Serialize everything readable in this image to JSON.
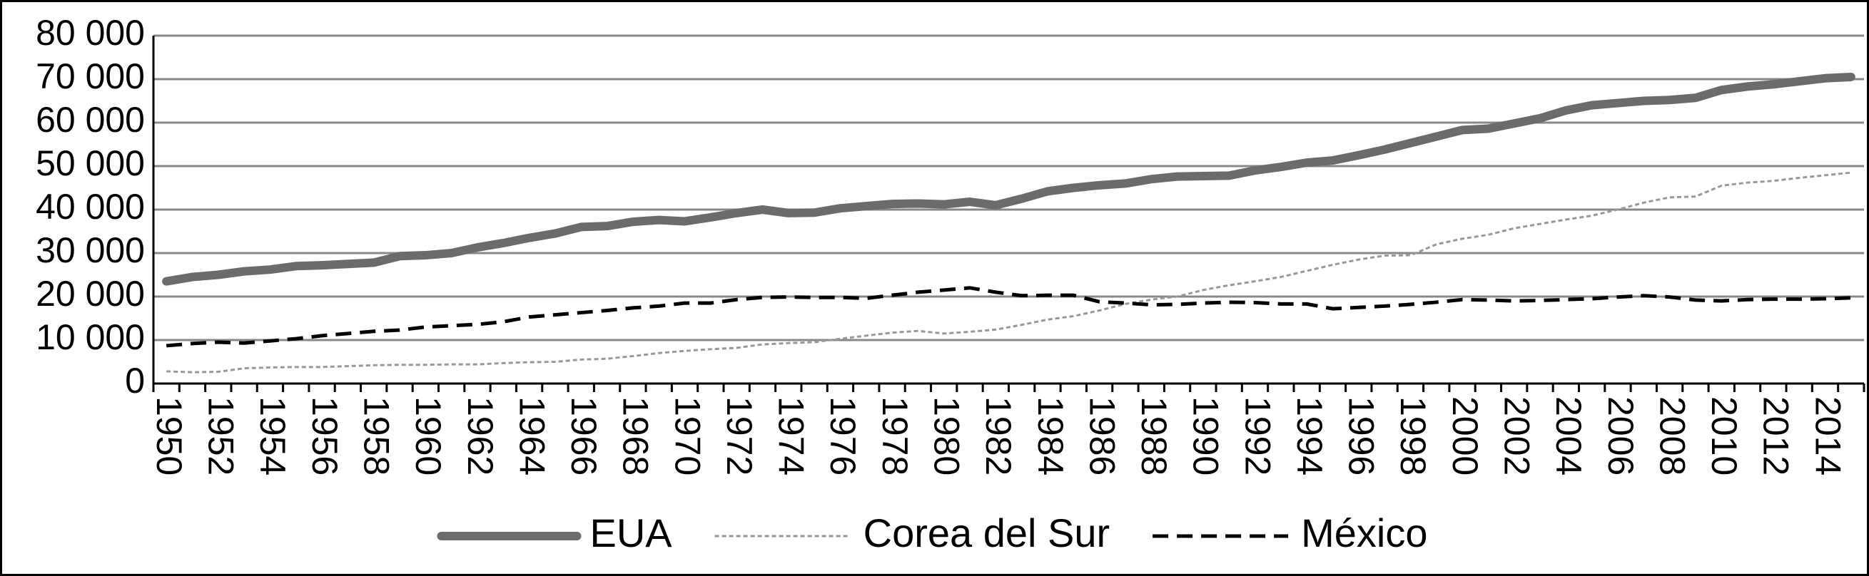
{
  "chart_data": {
    "type": "line",
    "categories": [
      "1950",
      null,
      "1952",
      null,
      "1954",
      null,
      "1956",
      null,
      "1958",
      null,
      "1960",
      null,
      "1962",
      null,
      "1964",
      null,
      "1966",
      null,
      "1968",
      null,
      "1970",
      null,
      "1972",
      null,
      "1974",
      null,
      "1976",
      null,
      "1978",
      null,
      "1980",
      null,
      "1982",
      null,
      "1984",
      null,
      "1986",
      null,
      "1988",
      null,
      "1990",
      null,
      "1992",
      null,
      "1994",
      null,
      "1996",
      null,
      "1998",
      null,
      "2000",
      null,
      "2002",
      null,
      "2004",
      null,
      "2006",
      null,
      "2008",
      null,
      "2010",
      null,
      "2012",
      null,
      "2014",
      null
    ],
    "series": [
      {
        "name": "EUA",
        "color": "#6b6b6b",
        "linestyle": "solid",
        "values": [
          23500,
          24500,
          25000,
          25800,
          26200,
          27000,
          27200,
          27500,
          27800,
          29300,
          29500,
          30000,
          31300,
          32300,
          33500,
          34500,
          36000,
          36200,
          37200,
          37600,
          37300,
          38200,
          39200,
          40000,
          39200,
          39300,
          40300,
          40800,
          41300,
          41400,
          41200,
          41800,
          41000,
          42500,
          44200,
          45000,
          45600,
          46000,
          47000,
          47600,
          47700,
          47800,
          49000,
          49800,
          50800,
          51300,
          52500,
          53800,
          55300,
          56800,
          58300,
          58600,
          59800,
          61000,
          62800,
          64000,
          64500,
          65000,
          65200,
          65700,
          67500,
          68300,
          68800,
          69500,
          70200,
          70500
        ]
      },
      {
        "name": "Corea del Sur",
        "color": "#999999",
        "linestyle": "dotted",
        "values": [
          2800,
          2600,
          2700,
          3500,
          3700,
          3800,
          3800,
          4000,
          4200,
          4300,
          4300,
          4400,
          4400,
          4700,
          4900,
          5000,
          5500,
          5700,
          6300,
          7000,
          7500,
          7900,
          8200,
          9000,
          9300,
          9500,
          10300,
          11000,
          11700,
          12100,
          11500,
          11900,
          12400,
          13500,
          14700,
          15500,
          16800,
          18300,
          19300,
          20000,
          21500,
          22600,
          23500,
          24500,
          25900,
          27300,
          28500,
          29400,
          29500,
          32000,
          33300,
          34200,
          35700,
          36700,
          37700,
          38600,
          40000,
          41600,
          42800,
          43000,
          45500,
          46200,
          46600,
          47300,
          47900,
          48500
        ]
      },
      {
        "name": "México",
        "color": "#000000",
        "linestyle": "dashed",
        "values": [
          8700,
          9200,
          9500,
          9300,
          9800,
          10300,
          11000,
          11500,
          12000,
          12300,
          13000,
          13300,
          13600,
          14200,
          15300,
          15800,
          16300,
          16800,
          17400,
          17800,
          18500,
          18500,
          19300,
          19800,
          19900,
          19800,
          19800,
          19600,
          20300,
          21000,
          21500,
          22000,
          21000,
          20200,
          20300,
          20300,
          18800,
          18500,
          18100,
          18200,
          18500,
          18700,
          18600,
          18300,
          18300,
          17200,
          17500,
          17800,
          18200,
          18700,
          19300,
          19200,
          19000,
          19100,
          19300,
          19500,
          19900,
          20200,
          19900,
          19200,
          19000,
          19300,
          19400,
          19400,
          19500,
          19700
        ]
      }
    ],
    "ylim": [
      0,
      80000
    ],
    "yticks": [
      0,
      {
        "value": 10000,
        "label": "10 000"
      },
      {
        "value": 20000,
        "label": "20 000"
      },
      {
        "value": 30000,
        "label": "30 000"
      },
      {
        "value": 40000,
        "label": "40 000"
      },
      {
        "value": 50000,
        "label": "50 000"
      },
      {
        "value": 60000,
        "label": "60 000"
      },
      {
        "value": 70000,
        "label": "70 000"
      },
      {
        "value": 80000,
        "label": "80 000"
      }
    ],
    "grid": true,
    "legend": "bottom"
  }
}
